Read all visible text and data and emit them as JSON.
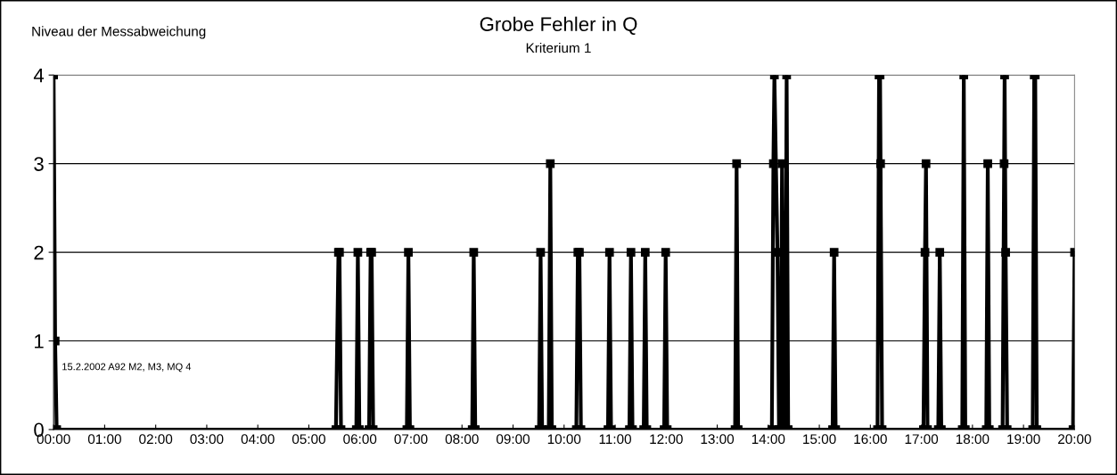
{
  "chart_data": {
    "type": "line",
    "title": "Grobe Fehler in Q",
    "subtitle": "Kriterium 1",
    "ylabel": "Niveau der Messabweichung",
    "annotations": [
      "15.2.2002 A92 M2, M3, MQ 4"
    ],
    "series": [
      {
        "color": "#000000",
        "x": [
          0,
          0.03,
          0.06,
          5.53,
          5.58,
          5.6,
          5.63,
          5.93,
          5.96,
          5.99,
          6.18,
          6.21,
          6.23,
          6.26,
          6.92,
          6.95,
          6.98,
          8.2,
          8.23,
          8.26,
          9.51,
          9.54,
          9.57,
          9.7,
          9.73,
          9.76,
          10.24,
          10.27,
          10.3,
          10.33,
          10.86,
          10.89,
          10.92,
          11.28,
          11.31,
          11.34,
          11.56,
          11.59,
          11.62,
          11.96,
          11.99,
          12.02,
          13.35,
          13.38,
          13.41,
          14.07,
          14.1,
          14.12,
          14.18,
          14.21,
          14.24,
          14.27,
          14.3,
          14.33,
          14.36,
          14.39,
          15.26,
          15.29,
          15.32,
          16.14,
          16.17,
          16.19,
          16.2,
          16.23,
          17.04,
          17.07,
          17.09,
          17.12,
          17.33,
          17.36,
          17.39,
          17.8,
          17.83,
          17.86,
          18.27,
          18.3,
          18.33,
          18.59,
          18.62,
          18.63,
          18.65,
          18.68,
          19.18,
          19.21,
          19.23,
          19.26,
          19.97,
          20
        ],
        "values": [
          4,
          1,
          0,
          0,
          2,
          2,
          0,
          0,
          2,
          0,
          0,
          2,
          2,
          0,
          0,
          2,
          0,
          0,
          2,
          0,
          0,
          2,
          0,
          0,
          3,
          0,
          0,
          2,
          2,
          0,
          0,
          2,
          0,
          0,
          2,
          0,
          0,
          2,
          0,
          0,
          2,
          0,
          0,
          3,
          0,
          0,
          3,
          4,
          2,
          0,
          0,
          3,
          0,
          0,
          4,
          0,
          0,
          2,
          0,
          0,
          4,
          4,
          3,
          0,
          0,
          2,
          3,
          0,
          0,
          2,
          0,
          0,
          4,
          0,
          0,
          3,
          0,
          0,
          3,
          4,
          2,
          0,
          0,
          4,
          4,
          0,
          0,
          2
        ]
      }
    ],
    "xlim": [
      0,
      20
    ],
    "xticks": [
      {
        "value": 0,
        "label": "00:00"
      },
      {
        "value": 1,
        "label": "01:00"
      },
      {
        "value": 2,
        "label": "02:00"
      },
      {
        "value": 3,
        "label": "03:00"
      },
      {
        "value": 4,
        "label": "04:00"
      },
      {
        "value": 5,
        "label": "05:00"
      },
      {
        "value": 6,
        "label": "06:00"
      },
      {
        "value": 7,
        "label": "07:00"
      },
      {
        "value": 8,
        "label": "08:00"
      },
      {
        "value": 9,
        "label": "09:00"
      },
      {
        "value": 10,
        "label": "10:00"
      },
      {
        "value": 11,
        "label": "11:00"
      },
      {
        "value": 12,
        "label": "12:00"
      },
      {
        "value": 13,
        "label": "13:00"
      },
      {
        "value": 14,
        "label": "14:00"
      },
      {
        "value": 15,
        "label": "15:00"
      },
      {
        "value": 16,
        "label": "16:00"
      },
      {
        "value": 17,
        "label": "17:00"
      },
      {
        "value": 18,
        "label": "18:00"
      },
      {
        "value": 19,
        "label": "19:00"
      },
      {
        "value": 20,
        "label": "20:00"
      }
    ],
    "ylim": [
      0,
      4
    ],
    "yticks": [
      0,
      1,
      2,
      3,
      4
    ],
    "grid": "y",
    "marker": "square",
    "line_style": "solid"
  }
}
